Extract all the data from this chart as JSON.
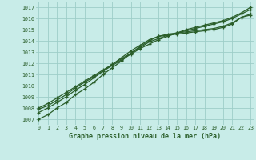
{
  "title": "Graphe pression niveau de la mer (hPa)",
  "xlabel_hours": [
    0,
    1,
    2,
    3,
    4,
    5,
    6,
    7,
    8,
    9,
    10,
    11,
    12,
    13,
    14,
    15,
    16,
    17,
    18,
    19,
    20,
    21,
    22,
    23
  ],
  "ylim": [
    1006.5,
    1017.5
  ],
  "xlim": [
    -0.3,
    23.3
  ],
  "yticks": [
    1007,
    1008,
    1009,
    1010,
    1011,
    1012,
    1013,
    1014,
    1015,
    1016,
    1017
  ],
  "bg_color": "#c8ece8",
  "grid_color": "#9ecec8",
  "line_color": "#2a5e2a",
  "line1": [
    1007.0,
    1007.4,
    1008.0,
    1008.5,
    1009.2,
    1009.7,
    1010.3,
    1011.0,
    1011.6,
    1012.2,
    1012.9,
    1013.5,
    1014.0,
    1014.4,
    1014.5,
    1014.6,
    1014.7,
    1014.8,
    1014.9,
    1015.0,
    1015.2,
    1015.5,
    1016.1,
    1016.3
  ],
  "line2": [
    1007.6,
    1008.0,
    1008.5,
    1009.0,
    1009.6,
    1010.1,
    1010.7,
    1011.3,
    1011.9,
    1012.5,
    1013.1,
    1013.6,
    1014.1,
    1014.4,
    1014.6,
    1014.7,
    1014.8,
    1014.9,
    1015.0,
    1015.1,
    1015.3,
    1015.6,
    1016.1,
    1016.4
  ],
  "line3": [
    1008.0,
    1008.4,
    1008.9,
    1009.4,
    1009.9,
    1010.4,
    1010.9,
    1011.4,
    1011.9,
    1012.4,
    1012.9,
    1013.4,
    1013.9,
    1014.2,
    1014.5,
    1014.7,
    1014.9,
    1015.1,
    1015.3,
    1015.5,
    1015.7,
    1016.0,
    1016.4,
    1016.8
  ],
  "line4": [
    1007.9,
    1008.2,
    1008.7,
    1009.2,
    1009.8,
    1010.3,
    1010.8,
    1011.3,
    1011.8,
    1012.3,
    1012.8,
    1013.3,
    1013.7,
    1014.1,
    1014.4,
    1014.7,
    1015.0,
    1015.2,
    1015.4,
    1015.6,
    1015.8,
    1016.1,
    1016.5,
    1017.0
  ],
  "marker_style": "+",
  "linewidth": 0.9,
  "markersize": 3.5,
  "markeredgewidth": 0.9
}
